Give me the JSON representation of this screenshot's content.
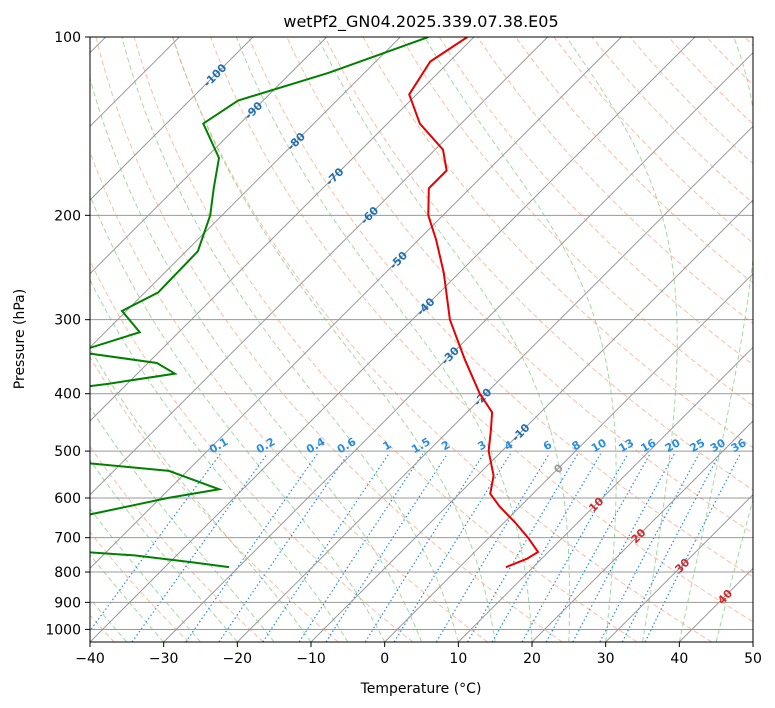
{
  "chart_data": {
    "type": "skew-t",
    "title": "wetPf2_GN04.2025.339.07.38.E05",
    "xlabel": "Temperature (°C)",
    "ylabel": "Pressure (hPa)",
    "xlim": [
      -40,
      50
    ],
    "ylim": [
      1050,
      100
    ],
    "y_scale": "log",
    "grid": true,
    "x_ticks": [
      "−40",
      "−30",
      "−20",
      "−10",
      "0",
      "10",
      "20",
      "30",
      "40",
      "50"
    ],
    "y_ticks": [
      "100",
      "200",
      "300",
      "400",
      "500",
      "600",
      "700",
      "800",
      "900",
      "1000"
    ],
    "colors": {
      "temperature": "#e60000",
      "dewpoint": "#008000",
      "isotherm": "#999999",
      "dry_adiabat": "#f4a582",
      "moist_adiabat": "#8fce8f",
      "mixing_ratio": "#2a8de0",
      "isotherm_label": "#1f6fb4",
      "positive_label": "#d62728"
    },
    "temperature_profile": [
      {
        "p": 100,
        "t": -70.9
      },
      {
        "p": 110,
        "t": -72.6
      },
      {
        "p": 125,
        "t": -71.0
      },
      {
        "p": 140,
        "t": -65.6
      },
      {
        "p": 155,
        "t": -58.9
      },
      {
        "p": 168,
        "t": -55.6
      },
      {
        "p": 180,
        "t": -55.6
      },
      {
        "p": 200,
        "t": -52.0
      },
      {
        "p": 220,
        "t": -47.6
      },
      {
        "p": 250,
        "t": -42.1
      },
      {
        "p": 300,
        "t": -34.9
      },
      {
        "p": 350,
        "t": -27.5
      },
      {
        "p": 400,
        "t": -20.8
      },
      {
        "p": 430,
        "t": -16.6
      },
      {
        "p": 460,
        "t": -14.4
      },
      {
        "p": 500,
        "t": -11.8
      },
      {
        "p": 550,
        "t": -7.8
      },
      {
        "p": 590,
        "t": -5.8
      },
      {
        "p": 620,
        "t": -2.8
      },
      {
        "p": 660,
        "t": 1.5
      },
      {
        "p": 700,
        "t": 5.3
      },
      {
        "p": 740,
        "t": 8.6
      },
      {
        "p": 760,
        "t": 8.0
      },
      {
        "p": 785,
        "t": 6.3
      }
    ],
    "dewpoint_profile": [
      {
        "p": 100,
        "t": -76.2
      },
      {
        "p": 115,
        "t": -84.9
      },
      {
        "p": 128,
        "t": -93.4
      },
      {
        "p": 140,
        "t": -95.0
      },
      {
        "p": 160,
        "t": -88.2
      },
      {
        "p": 180,
        "t": -84.8
      },
      {
        "p": 200,
        "t": -81.6
      },
      {
        "p": 230,
        "t": -78.4
      },
      {
        "p": 270,
        "t": -78.2
      },
      {
        "p": 290,
        "t": -80.6
      },
      {
        "p": 315,
        "t": -75.3
      },
      {
        "p": 340,
        "t": -81.1
      },
      {
        "p": 355,
        "t": -68.8
      },
      {
        "p": 370,
        "t": -64.9
      },
      {
        "p": 385,
        "t": -72.6
      },
      {
        "p": 400,
        "t": -81.9
      },
      {
        "p": 408,
        "t": -86.6
      },
      {
        "p": 500,
        "t": -76.2
      },
      {
        "p": 515,
        "t": -71.4
      },
      {
        "p": 540,
        "t": -52.5
      },
      {
        "p": 580,
        "t": -43.2
      },
      {
        "p": 600,
        "t": -49.0
      },
      {
        "p": 640,
        "t": -57.4
      },
      {
        "p": 670,
        "t": -68.7
      },
      {
        "p": 700,
        "t": -85.4
      },
      {
        "p": 720,
        "t": -68.3
      },
      {
        "p": 750,
        "t": -45.7
      },
      {
        "p": 770,
        "t": -37.0
      },
      {
        "p": 785,
        "t": -31.3
      }
    ],
    "isotherm_labels": [
      "-100",
      "-90",
      "-80",
      "-70",
      "-60",
      "-50",
      "-40",
      "-30",
      "-20",
      "-10",
      "0",
      "10",
      "20",
      "30",
      "40"
    ],
    "mixing_ratio_labels": [
      "0.1",
      "0.2",
      "0.4",
      "0.6",
      "1",
      "1.5",
      "2",
      "3",
      "4",
      "6",
      "8",
      "10",
      "13",
      "16",
      "20",
      "25",
      "30",
      "36"
    ]
  }
}
